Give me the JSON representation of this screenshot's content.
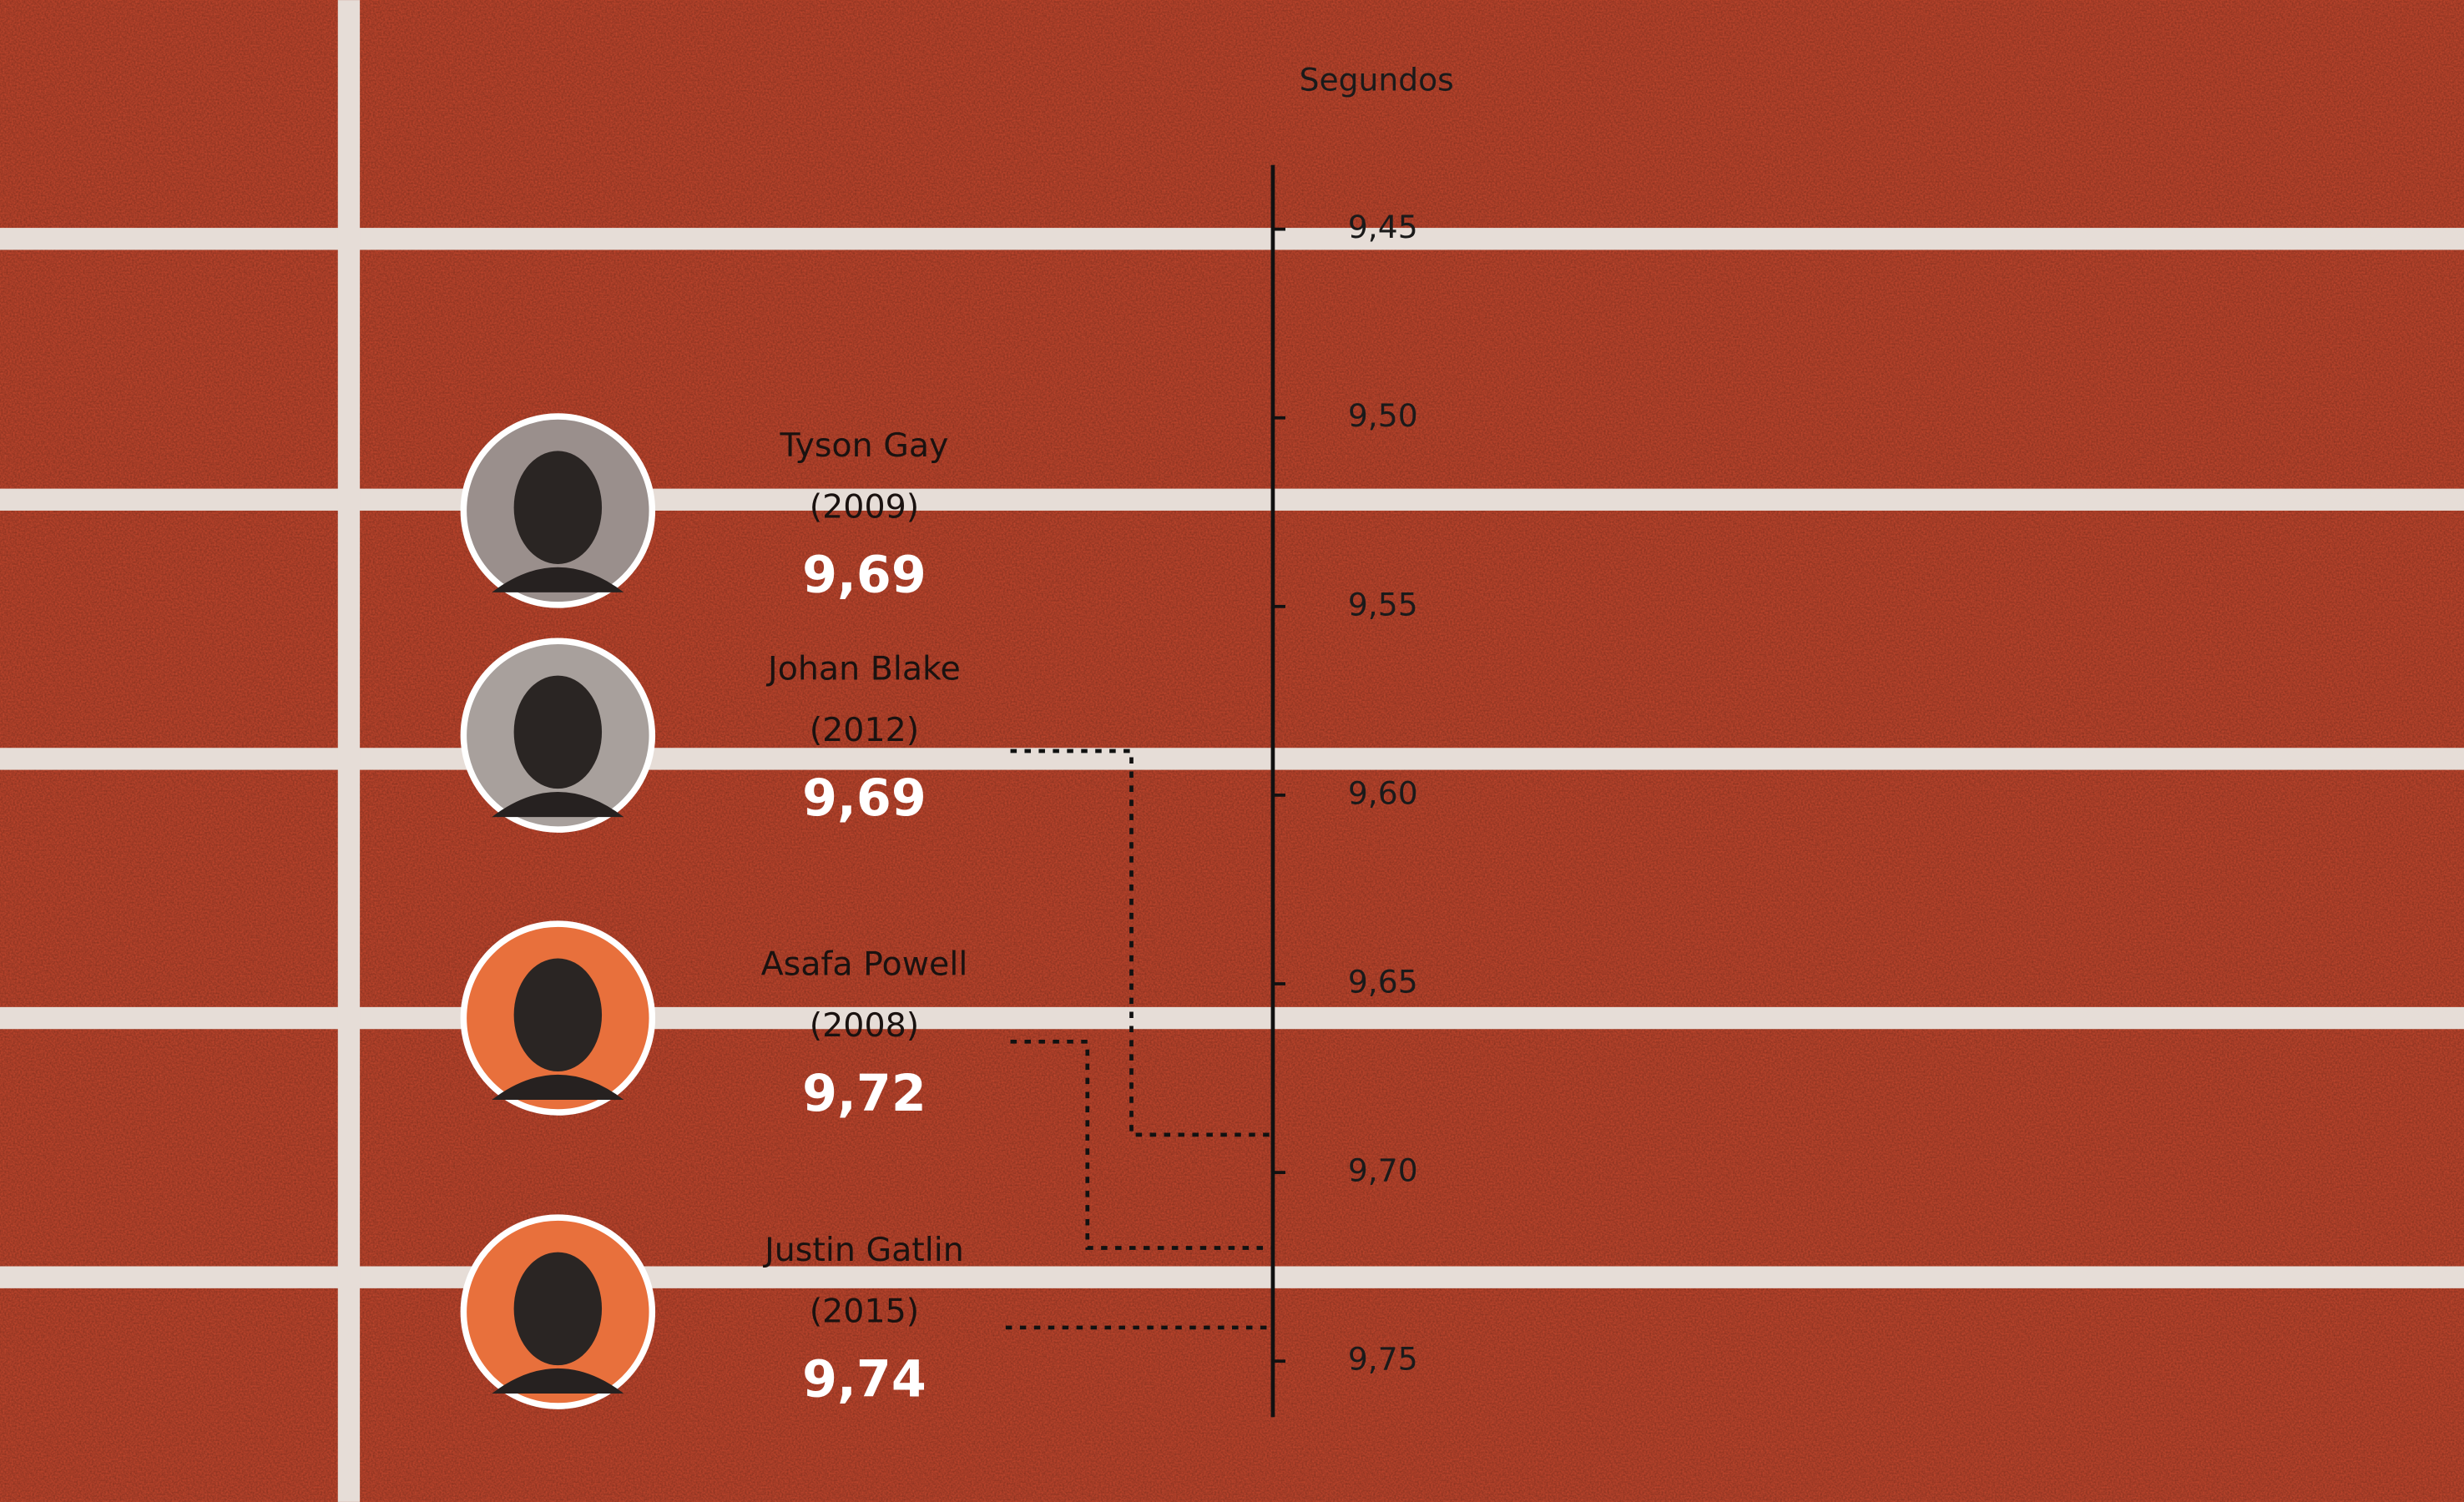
{
  "chart_data": {
    "type": "dot",
    "y_label": "Segundos",
    "categories": [
      "Tyson Gay",
      "Johan Blake",
      "Asafa Powell",
      "Justin Gatlin"
    ],
    "years": [
      "(2009)",
      "(2012)",
      "(2008)",
      "(2015)"
    ],
    "values": [
      9.69,
      9.69,
      9.72,
      9.74
    ],
    "value_labels": [
      "9,69",
      "9,69",
      "9,72",
      "9,74"
    ],
    "ylim": [
      9.433,
      9.764
    ],
    "yticks": [
      {
        "value": 9.45,
        "label": "9,45"
      },
      {
        "value": 9.5,
        "label": "9,50"
      },
      {
        "value": 9.55,
        "label": "9,55"
      },
      {
        "value": 9.6,
        "label": "9,60"
      },
      {
        "value": 9.65,
        "label": "9,65"
      },
      {
        "value": 9.7,
        "label": "9,70"
      },
      {
        "value": 9.75,
        "label": "9,75"
      }
    ]
  }
}
